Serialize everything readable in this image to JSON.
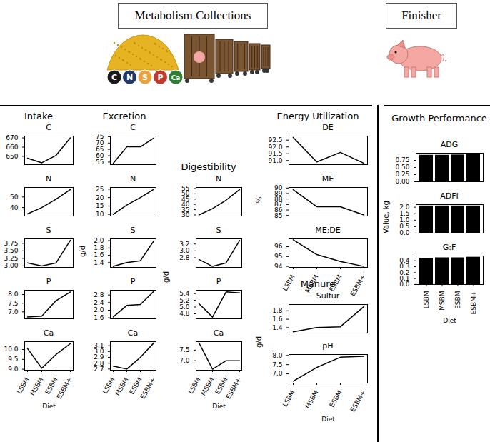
{
  "header": {
    "left": "Metabolism Collections",
    "right": "Finisher",
    "elements": [
      "C",
      "N",
      "S",
      "P",
      "Ca"
    ]
  },
  "chart_data": [
    {
      "type": "line",
      "title": "Intake",
      "ylabel": null,
      "xlabel": "Diet",
      "color": "#000000",
      "categories": [
        "LSBM",
        "MSBM",
        "ESBM",
        "ESBM+"
      ],
      "panels": [
        {
          "title": "C",
          "values": [
            648,
            643,
            651,
            670
          ],
          "ylim": [
            641,
            672
          ],
          "yticks": [
            650,
            660,
            670
          ]
        },
        {
          "title": "N",
          "values": [
            34,
            40,
            48,
            57
          ],
          "ylim": [
            32,
            59
          ],
          "yticks": [
            40,
            50
          ]
        },
        {
          "title": "S",
          "values": [
            3.1,
            3.0,
            3.1,
            3.85
          ],
          "ylim": [
            2.95,
            3.9
          ],
          "yticks": [
            {
              "value": 3,
              "label": "3.00"
            },
            3.25,
            {
              "value": 3.5,
              "label": "3.50"
            },
            3.75
          ]
        },
        {
          "title": "P",
          "values": [
            6.7,
            6.75,
            7.65,
            8.15
          ],
          "ylim": [
            6.6,
            8.25
          ],
          "yticks": [
            {
              "value": 7,
              "label": "7.0"
            },
            7.5,
            {
              "value": 8,
              "label": "8.0"
            }
          ]
        },
        {
          "title": "Ca",
          "values": [
            10.05,
            9.05,
            9.75,
            10.3
          ],
          "ylim": [
            8.95,
            10.4
          ],
          "yticks": [
            {
              "value": 9,
              "label": "9.0"
            },
            9.5,
            {
              "value": 10,
              "label": "10.0"
            }
          ]
        }
      ]
    },
    {
      "type": "line",
      "title": "Excretion",
      "ylabel": "g/d",
      "xlabel": null,
      "color": "#000000",
      "categories": [
        "LSBM",
        "MSBM",
        "ESBM",
        "ESBM+"
      ],
      "panels": [
        {
          "title": "C",
          "values": [
            54,
            67,
            67,
            74
          ],
          "ylim": [
            53,
            75.5
          ],
          "yticks": [
            55,
            60,
            65,
            70,
            75
          ]
        },
        {
          "title": "N",
          "values": [
            10,
            15.5,
            20,
            25
          ],
          "ylim": [
            9,
            26
          ],
          "yticks": [
            10,
            15,
            20,
            25
          ]
        },
        {
          "title": "S",
          "values": [
            1.3,
            1.4,
            1.45,
            2.0
          ],
          "ylim": [
            1.27,
            2.05
          ],
          "yticks": [
            1.4,
            1.6,
            1.8,
            {
              "value": 2,
              "label": "2.0"
            }
          ]
        },
        {
          "title": "P",
          "values": [
            1.65,
            2.25,
            2.3,
            3.0
          ],
          "ylim": [
            1.55,
            3.05
          ],
          "yticks": [
            1.6,
            {
              "value": 2,
              "label": "2.0"
            },
            2.4,
            2.8
          ]
        },
        {
          "title": "Ca",
          "values": [
            2.75,
            2.7,
            2.9,
            3.15
          ],
          "ylim": [
            2.68,
            3.17
          ],
          "yticks": [
            2.7,
            2.8,
            2.9,
            {
              "value": 3,
              "label": "3.0"
            },
            3.1
          ]
        }
      ]
    },
    {
      "type": "line",
      "title": "Digestibility",
      "ylabel": "g/d",
      "xlabel": "Diet",
      "color": "#000000",
      "categories": [
        "LSBM",
        "MSBM",
        "ESBM",
        "ESBM+"
      ],
      "panels": [
        {
          "title": "N",
          "values": [
            30,
            36,
            44,
            54
          ],
          "ylim": [
            29,
            56
          ],
          "yticks": [
            30,
            35,
            40,
            45,
            50,
            55
          ]
        },
        {
          "title": "S",
          "values": [
            2.75,
            2.55,
            2.65,
            3.3
          ],
          "ylim": [
            2.52,
            3.35
          ],
          "yticks": [
            2.8,
            {
              "value": 3,
              "label": "3.0"
            },
            3.2
          ]
        },
        {
          "title": "P",
          "values": [
            5.1,
            4.7,
            5.45,
            5.42
          ],
          "ylim": [
            4.65,
            5.5
          ],
          "yticks": [
            4.8,
            {
              "value": 5,
              "label": "5.0"
            },
            5.2,
            5.4
          ]
        },
        {
          "title": "Ca",
          "values": [
            7.85,
            6.6,
            7.0,
            7.0
          ],
          "ylim": [
            6.55,
            7.9
          ],
          "yticks": [
            {
              "value": 7,
              "label": "7.0"
            },
            7.5
          ]
        }
      ]
    },
    {
      "type": "line",
      "title": "Energy Utilization",
      "ylabel": "%",
      "xlabel": null,
      "color": "#000000",
      "categories": [
        "LSBM",
        "MSBM",
        "ESBM",
        "ESBM+"
      ],
      "panels": [
        {
          "title": "DE",
          "values": [
            92.7,
            90.9,
            91.6,
            90.8
          ],
          "ylim": [
            90.7,
            92.8
          ],
          "yticks": [
            {
              "value": 91,
              "label": "91.0"
            },
            91.5,
            {
              "value": 92,
              "label": "92.0"
            },
            92.5
          ]
        },
        {
          "title": "ME",
          "values": [
            89.7,
            86.6,
            86.6,
            85.1
          ],
          "ylim": [
            84.9,
            90.1
          ],
          "yticks": [
            85,
            86,
            87,
            88,
            89,
            90
          ]
        },
        {
          "title": "ME:DE",
          "values": [
            96.7,
            95.2,
            94.5,
            94.0
          ],
          "ylim": [
            93.9,
            96.8
          ],
          "yticks": [
            94,
            95,
            96
          ]
        }
      ]
    },
    {
      "type": "line",
      "title": "Manure",
      "ylabel": "g/d",
      "xlabel": "Diet",
      "color": "#000000",
      "categories": [
        "LSBM",
        "MSBM",
        "ESBM",
        "ESBM+"
      ],
      "panels": [
        {
          "title": "Sulfur",
          "values": [
            1.3,
            1.4,
            1.42,
            1.9
          ],
          "ylim": [
            1.27,
            1.95
          ],
          "yticks": [
            1.4,
            1.6,
            1.8
          ]
        },
        {
          "title": "pH",
          "values": [
            6.6,
            7.35,
            7.9,
            7.95
          ],
          "ylim": [
            6.5,
            8.05
          ],
          "yticks": [
            {
              "value": 7,
              "label": "7.0"
            },
            7.5,
            {
              "value": 8,
              "label": "8.0"
            }
          ]
        }
      ]
    },
    {
      "type": "bar",
      "title": "Growth Performance",
      "ylabel": "Value, kg",
      "xlabel": "Diet",
      "color": "#000000",
      "categories": [
        "LSBM",
        "MSBM",
        "ESBM",
        "ESBM+"
      ],
      "panels": [
        {
          "title": "ADG",
          "values": [
            0.93,
            0.93,
            0.94,
            0.95
          ],
          "ylim": [
            0,
            1.0
          ],
          "yticks": [
            {
              "value": 0,
              "label": "0.00"
            },
            0.25,
            {
              "value": 0.5,
              "label": "0.50"
            },
            0.75
          ]
        },
        {
          "title": "ADFI",
          "values": [
            2.1,
            2.1,
            2.1,
            2.1
          ],
          "ylim": [
            0,
            2.2
          ],
          "yticks": [
            {
              "value": 0,
              "label": "0.0"
            },
            0.5,
            {
              "value": 1,
              "label": "1.0"
            },
            1.5,
            {
              "value": 2,
              "label": "2.0"
            }
          ]
        },
        {
          "title": "G:F",
          "values": [
            0.44,
            0.45,
            0.45,
            0.46
          ],
          "ylim": [
            0,
            0.48
          ],
          "yticks": [
            {
              "value": 0,
              "label": "0.0"
            },
            0.1,
            0.2,
            0.3,
            0.4
          ]
        }
      ]
    }
  ]
}
